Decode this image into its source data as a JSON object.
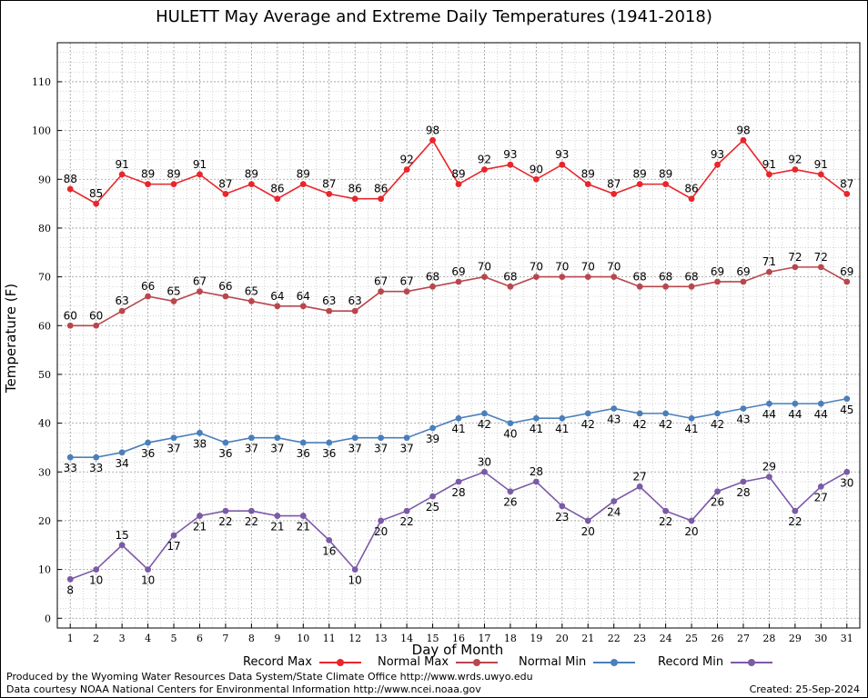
{
  "title": "HULETT May Average and Extreme Daily Temperatures (1941-2018)",
  "footer": {
    "line1": "Produced by the Wyoming Water Resources Data System/State Climate Office http://www.wrds.uwyo.edu",
    "line2": "Data courtesy NOAA National Centers for Environmental Information http://www.ncei.noaa.gov",
    "created": "Created:  25-Sep-2024"
  },
  "chart_data": {
    "type": "line",
    "title": "HULETT May Average and Extreme Daily Temperatures (1941-2018)",
    "xlabel": "Day of Month",
    "ylabel": "Temperature (F)",
    "x": [
      1,
      2,
      3,
      4,
      5,
      6,
      7,
      8,
      9,
      10,
      11,
      12,
      13,
      14,
      15,
      16,
      17,
      18,
      19,
      20,
      21,
      22,
      23,
      24,
      25,
      26,
      27,
      28,
      29,
      30,
      31
    ],
    "xlim": [
      0.5,
      31.5
    ],
    "ylim": [
      -2,
      118
    ],
    "yticks": [
      0,
      10,
      20,
      30,
      40,
      50,
      60,
      70,
      80,
      90,
      100,
      110
    ],
    "grid": true,
    "legend_position": "bottom",
    "series": [
      {
        "name": "Record Max",
        "color": "#e8262b",
        "values": [
          88,
          85,
          91,
          89,
          89,
          91,
          87,
          89,
          86,
          89,
          87,
          86,
          86,
          92,
          98,
          89,
          92,
          93,
          90,
          93,
          89,
          87,
          89,
          89,
          86,
          93,
          98,
          91,
          92,
          91,
          87
        ]
      },
      {
        "name": "Normal Max",
        "color": "#b8474d",
        "values": [
          60,
          60,
          63,
          66,
          65,
          67,
          66,
          65,
          64,
          64,
          63,
          63,
          67,
          67,
          68,
          69,
          70,
          68,
          70,
          70,
          70,
          70,
          68,
          68,
          68,
          69,
          69,
          71,
          72,
          72,
          69
        ]
      },
      {
        "name": "Normal Min",
        "color": "#4a7fbb",
        "values": [
          33,
          33,
          34,
          36,
          37,
          38,
          36,
          37,
          37,
          36,
          36,
          37,
          37,
          37,
          39,
          41,
          42,
          40,
          41,
          41,
          42,
          43,
          42,
          42,
          41,
          42,
          43,
          44,
          44,
          44,
          45
        ]
      },
      {
        "name": "Record Min",
        "color": "#7b5aa6",
        "values": [
          8,
          10,
          15,
          10,
          17,
          21,
          22,
          22,
          21,
          21,
          16,
          10,
          20,
          22,
          25,
          28,
          30,
          26,
          28,
          23,
          20,
          24,
          27,
          22,
          20,
          26,
          28,
          29,
          22,
          27,
          30
        ]
      }
    ]
  }
}
